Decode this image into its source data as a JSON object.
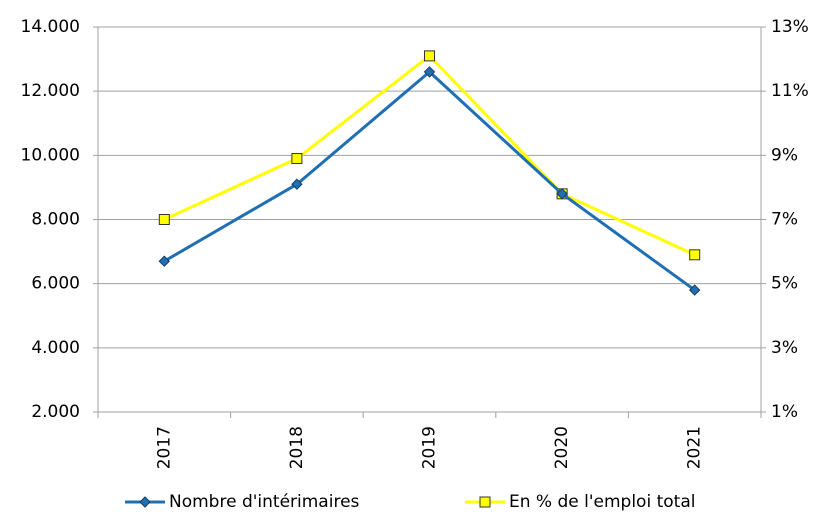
{
  "chart_data": {
    "type": "line",
    "categories": [
      "2017",
      "2018",
      "2019",
      "2020",
      "2021"
    ],
    "series": [
      {
        "name": "Nombre d'intérimaires",
        "color": "#1f6fb2",
        "marker": "diamond",
        "values": [
          6700,
          9100,
          12600,
          8800,
          5800
        ]
      },
      {
        "name": "En % de l'emploi total",
        "color": "#ffff00",
        "marker": "square",
        "axis": "y2",
        "values": [
          7.0,
          8.9,
          12.1,
          7.8,
          5.9
        ]
      }
    ],
    "ylim": [
      2000,
      14000
    ],
    "yticks": [
      {
        "value": 2000,
        "label": "2.000"
      },
      {
        "value": 4000,
        "label": "4.000"
      },
      {
        "value": 6000,
        "label": "6.000"
      },
      {
        "value": 8000,
        "label": "8.000"
      },
      {
        "value": 10000,
        "label": "10.000"
      },
      {
        "value": 12000,
        "label": "12.000"
      },
      {
        "value": 14000,
        "label": "14.000"
      }
    ],
    "y2lim": [
      1,
      13
    ],
    "y2ticks": [
      {
        "value": 1,
        "label": "1%"
      },
      {
        "value": 3,
        "label": "3%"
      },
      {
        "value": 5,
        "label": "5%"
      },
      {
        "value": 7,
        "label": "7%"
      },
      {
        "value": 9,
        "label": "9%"
      },
      {
        "value": 11,
        "label": "11%"
      },
      {
        "value": 13,
        "label": "13%"
      }
    ],
    "grid": true,
    "legend": "bottom"
  }
}
